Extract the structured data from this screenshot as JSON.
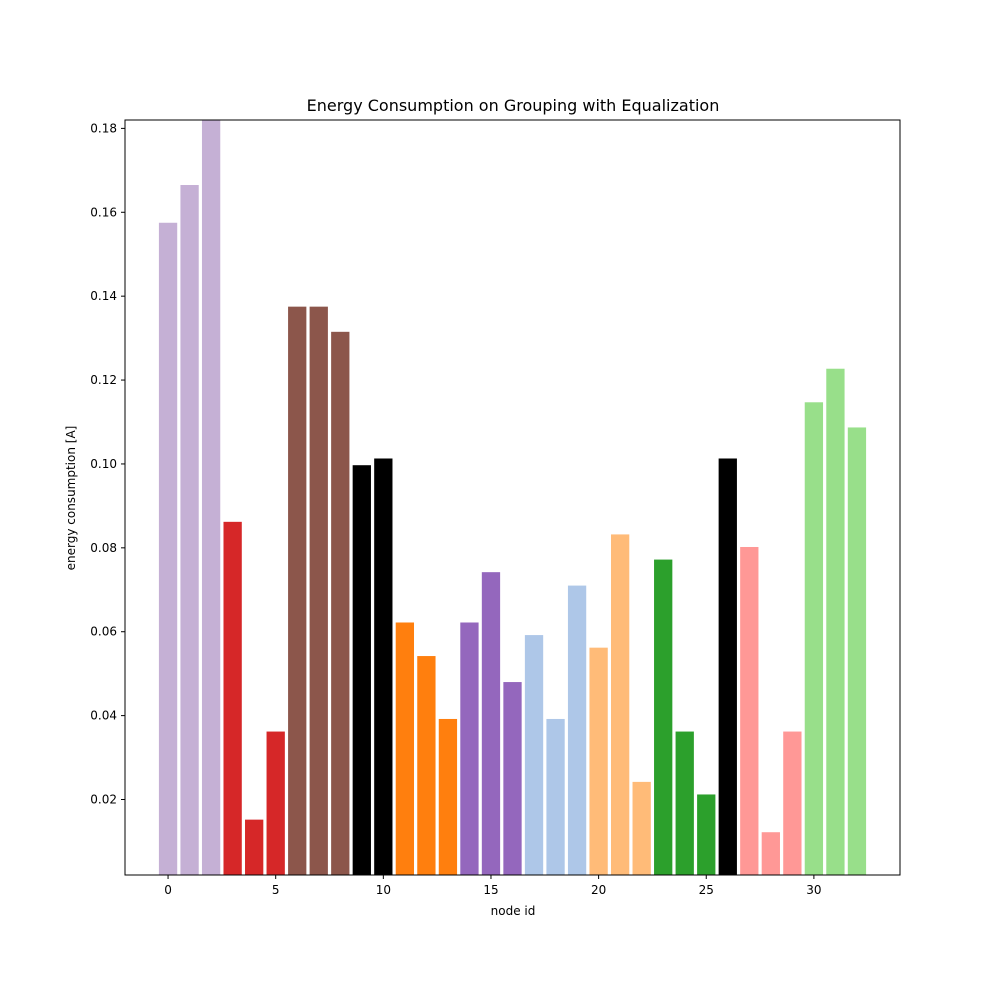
{
  "chart_data": {
    "type": "bar",
    "title": "Energy Consumption on Grouping with Equalization",
    "xlabel": "node id",
    "ylabel": "energy consumption [A]",
    "xlim": [
      -2,
      34
    ],
    "ylim": [
      0.002,
      0.182
    ],
    "xticks": [
      "0",
      "5",
      "10",
      "15",
      "20",
      "25",
      "30"
    ],
    "yticks": [
      "0.02",
      "0.04",
      "0.06",
      "0.08",
      "0.10",
      "0.12",
      "0.14",
      "0.16",
      "0.18"
    ],
    "grid": false,
    "x": [
      0,
      1,
      2,
      3,
      4,
      5,
      6,
      7,
      8,
      9,
      10,
      11,
      12,
      13,
      14,
      15,
      16,
      17,
      18,
      19,
      20,
      21,
      22,
      23,
      24,
      25,
      26,
      27,
      28,
      29,
      30,
      31,
      32
    ],
    "values": [
      0.1575,
      0.1665,
      0.183,
      0.0862,
      0.0152,
      0.0362,
      0.1375,
      0.1375,
      0.1315,
      0.0997,
      0.1013,
      0.0622,
      0.0542,
      0.0392,
      0.0622,
      0.0742,
      0.048,
      0.0592,
      0.0392,
      0.071,
      0.0562,
      0.0832,
      0.0242,
      0.0772,
      0.0362,
      0.0212,
      0.1013,
      0.0802,
      0.0122,
      0.0362,
      0.1147,
      0.1227,
      0.1087
    ],
    "bar_colors": [
      "#c5b0d5",
      "#c5b0d5",
      "#c5b0d5",
      "#d62728",
      "#d62728",
      "#d62728",
      "#8c564b",
      "#8c564b",
      "#8c564b",
      "#000000",
      "#000000",
      "#ff7f0e",
      "#ff7f0e",
      "#ff7f0e",
      "#9467bd",
      "#9467bd",
      "#9467bd",
      "#aec7e8",
      "#aec7e8",
      "#aec7e8",
      "#ffbb78",
      "#ffbb78",
      "#ffbb78",
      "#2ca02c",
      "#2ca02c",
      "#2ca02c",
      "#000000",
      "#ff9896",
      "#ff9896",
      "#ff9896",
      "#98df8a",
      "#98df8a",
      "#98df8a"
    ]
  }
}
